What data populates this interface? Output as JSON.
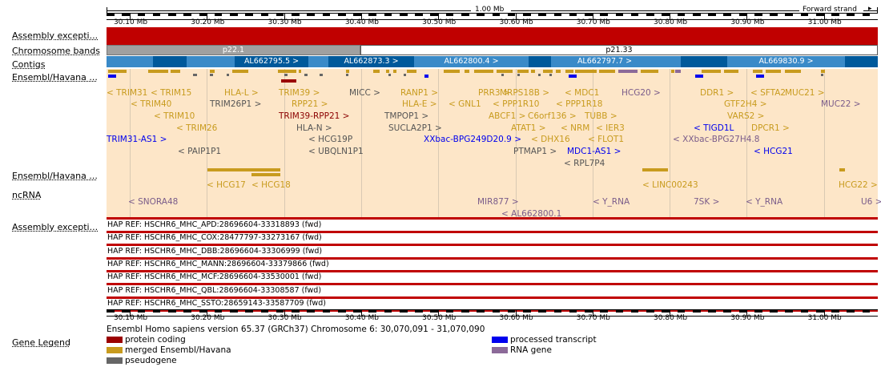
{
  "header": {
    "scale_label": "1.00 Mb",
    "strand_label": "Forward strand"
  },
  "ruler_labels": [
    "30.10 Mb",
    "30.20 Mb",
    "30.30 Mb",
    "30.40 Mb",
    "30.50 Mb",
    "30.60 Mb",
    "30.70 Mb",
    "30.80 Mb",
    "30.90 Mb",
    "31.00 Mb"
  ],
  "track_labels": {
    "assembly1": "Assembly excepti...",
    "bands": "Chromosome bands",
    "contigs": "Contigs",
    "ensembl1": "Ensembl/Havana ...",
    "ensembl2": "Ensembl/Havana ...",
    "ncrna": "ncRNA",
    "assembly2": "Assembly excepti...",
    "legend": "Gene Legend"
  },
  "bands": [
    "p22.1",
    "p21.33"
  ],
  "contigs": [
    "AL662795.5 >",
    "AL662873.3 >",
    "AL662800.4 >",
    "AL662797.7 >",
    "AL669830.9 >"
  ],
  "genes": [
    {
      "label": "< TRIM31",
      "color": "#c89b1e"
    },
    {
      "label": "< TRIM15",
      "color": "#c89b1e"
    },
    {
      "label": "< TRIM40",
      "color": "#c89b1e"
    },
    {
      "label": "< TRIM10",
      "color": "#c89b1e"
    },
    {
      "label": "< TRIM26",
      "color": "#c89b1e"
    },
    {
      "label": "TRIM31-AS1 >",
      "color": "#0000ee"
    },
    {
      "label": "< PAIP1P1",
      "color": "#555555"
    },
    {
      "label": "HLA-L >",
      "color": "#c89b1e"
    },
    {
      "label": "TRIM26P1 >",
      "color": "#555555"
    },
    {
      "label": "TRIM39 >",
      "color": "#c89b1e"
    },
    {
      "label": "RPP21 >",
      "color": "#c89b1e"
    },
    {
      "label": "TRIM39-RPP21 >",
      "color": "#8b0000"
    },
    {
      "label": "HLA-N >",
      "color": "#555555"
    },
    {
      "label": "< HCG19P",
      "color": "#555555"
    },
    {
      "label": "< UBQLN1P1",
      "color": "#555555"
    },
    {
      "label": "MICC >",
      "color": "#555555"
    },
    {
      "label": "TMPOP1 >",
      "color": "#555555"
    },
    {
      "label": "SUCLA2P1 >",
      "color": "#555555"
    },
    {
      "label": "RANP1 >",
      "color": "#c89b1e"
    },
    {
      "label": "HLA-E >",
      "color": "#c89b1e"
    },
    {
      "label": "< GNL1",
      "color": "#c89b1e"
    },
    {
      "label": "XXbac-BPG249D20.9 >",
      "color": "#0000ee"
    },
    {
      "label": "PRR3 >",
      "color": "#c89b1e"
    },
    {
      "label": "< PPP1R10",
      "color": "#c89b1e"
    },
    {
      "label": "ABCF1 >",
      "color": "#c89b1e"
    },
    {
      "label": "ATAT1 >",
      "color": "#c89b1e"
    },
    {
      "label": "PTMAP1 >",
      "color": "#555555"
    },
    {
      "label": "MRPS18B >",
      "color": "#c89b1e"
    },
    {
      "label": "C6orf136 >",
      "color": "#c89b1e"
    },
    {
      "label": "< DHX16",
      "color": "#c89b1e"
    },
    {
      "label": "< MDC1",
      "color": "#c89b1e"
    },
    {
      "label": "< PPP1R18",
      "color": "#c89b1e"
    },
    {
      "label": "TUBB >",
      "color": "#c89b1e"
    },
    {
      "label": "< NRM",
      "color": "#c89b1e"
    },
    {
      "label": "< IER3",
      "color": "#c89b1e"
    },
    {
      "label": "< FLOT1",
      "color": "#c89b1e"
    },
    {
      "label": "MDC1-AS1 >",
      "color": "#0000ee"
    },
    {
      "label": "< RPL7P4",
      "color": "#555555"
    },
    {
      "label": "HCG20 >",
      "color": "#7a5c8a"
    },
    {
      "label": "< XXbac-BPG27H4.8",
      "color": "#7a5c8a"
    },
    {
      "label": "DDR1 >",
      "color": "#c89b1e"
    },
    {
      "label": "GTF2H4 >",
      "color": "#c89b1e"
    },
    {
      "label": "VARS2 >",
      "color": "#c89b1e"
    },
    {
      "label": "< TIGD1L",
      "color": "#0000ee"
    },
    {
      "label": "< SFTA2",
      "color": "#c89b1e"
    },
    {
      "label": "DPCR1 >",
      "color": "#c89b1e"
    },
    {
      "label": "< HCG21",
      "color": "#0000ee"
    },
    {
      "label": "MUC21 >",
      "color": "#c89b1e"
    },
    {
      "label": "MUC22 >",
      "color": "#7a5c8a"
    }
  ],
  "genes2": [
    {
      "label": "< HCG17",
      "color": "#c89b1e"
    },
    {
      "label": "< HCG18",
      "color": "#c89b1e"
    },
    {
      "label": "< LINC00243",
      "color": "#c89b1e"
    },
    {
      "label": "HCG22 >",
      "color": "#c89b1e"
    }
  ],
  "ncrna": [
    {
      "label": "< SNORA48",
      "color": "#7a5c8a"
    },
    {
      "label": "MIR877 >",
      "color": "#7a5c8a"
    },
    {
      "label": "< AL662800.1",
      "color": "#7a5c8a"
    },
    {
      "label": "< Y_RNA",
      "color": "#7a5c8a"
    },
    {
      "label": "7SK >",
      "color": "#7a5c8a"
    },
    {
      "label": "< Y_RNA",
      "color": "#7a5c8a"
    },
    {
      "label": "U6 >",
      "color": "#7a5c8a"
    }
  ],
  "haplotypes": [
    "HAP REF: HSCHR6_MHC_APD:28696604-33318893 (fwd)",
    "HAP REF: HSCHR6_MHC_COX:28477797-33273167 (fwd)",
    "HAP REF: HSCHR6_MHC_DBB:28696604-33306999 (fwd)",
    "HAP REF: HSCHR6_MHC_MANN:28696604-33379866 (fwd)",
    "HAP REF: HSCHR6_MHC_MCF:28696604-33530001 (fwd)",
    "HAP REF: HSCHR6_MHC_QBL:28696604-33308587 (fwd)",
    "HAP REF: HSCHR6_MHC_SSTO:28659143-33587709 (fwd)"
  ],
  "footer_text": "Ensembl Homo sapiens version 65.37 (GRCh37) Chromosome 6: 30,070,091 - 31,070,090",
  "legend": [
    {
      "label": "protein coding",
      "color": "#9b0000"
    },
    {
      "label": "merged Ensembl/Havana",
      "color": "#c89b1e"
    },
    {
      "label": "pseudogene",
      "color": "#666666"
    },
    {
      "label": "processed transcript",
      "color": "#0000ee"
    },
    {
      "label": "RNA gene",
      "color": "#8c6a99"
    }
  ],
  "colors": {
    "assembly_red": "#c00000",
    "band_gray": "#a0a0a0",
    "contig_blue": "#3a8ac8",
    "contig_dark": "#00599b",
    "gene_bg": "#fde6c8"
  }
}
